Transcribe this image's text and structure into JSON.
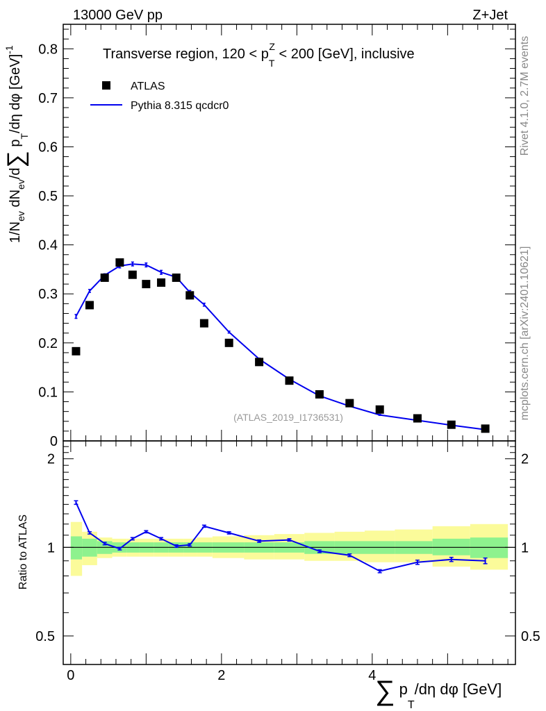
{
  "header": {
    "left": "13000 GeV pp",
    "right": "Z+Jet"
  },
  "side_labels": {
    "top": "Rivet 4.1.0,  2.7M events",
    "bottom": "mcplots.cern.ch [arXiv:2401.10621]"
  },
  "chart_data": [
    {
      "type": "scatter",
      "panel": "main",
      "title": "Transverse region, 120 < p_T^Z < 200 [GeV], inclusive",
      "analysis_label": "(ATLAS_2019_I1736531)",
      "ylabel": "1/N_ev dN_ev/d∑p_T/dη dφ [GeV]^-1",
      "xlim": [
        -0.1,
        5.9
      ],
      "ylim": [
        0,
        0.85
      ],
      "ytick_labels": [
        "0",
        "0.1",
        "0.2",
        "0.3",
        "0.4",
        "0.5",
        "0.6",
        "0.7",
        "0.8"
      ],
      "legend": {
        "placement": "top-left",
        "entries": [
          "ATLAS",
          "Pythia 8.315 qcdcr0"
        ]
      },
      "series": [
        {
          "name": "ATLAS",
          "style": "markers",
          "color": "#000000",
          "x": [
            0.07,
            0.25,
            0.45,
            0.65,
            0.82,
            1.0,
            1.2,
            1.4,
            1.58,
            1.77,
            2.1,
            2.5,
            2.9,
            3.3,
            3.7,
            4.1,
            4.6,
            5.05,
            5.5
          ],
          "y": [
            0.183,
            0.277,
            0.333,
            0.364,
            0.339,
            0.32,
            0.323,
            0.333,
            0.297,
            0.24,
            0.2,
            0.161,
            0.123,
            0.095,
            0.077,
            0.064,
            0.046,
            0.033,
            0.025
          ]
        },
        {
          "name": "Pythia 8.315 qcdcr0",
          "style": "line",
          "color": "#0000ee",
          "x": [
            0.07,
            0.25,
            0.45,
            0.65,
            0.82,
            1.0,
            1.2,
            1.4,
            1.58,
            1.77,
            2.1,
            2.5,
            2.9,
            3.3,
            3.7,
            4.1,
            4.6,
            5.05,
            5.5
          ],
          "y": [
            0.254,
            0.306,
            0.338,
            0.357,
            0.361,
            0.359,
            0.344,
            0.334,
            0.303,
            0.278,
            0.222,
            0.167,
            0.126,
            0.092,
            0.071,
            0.053,
            0.042,
            0.032,
            0.023
          ],
          "err": [
            0.004,
            0.003,
            0.003,
            0.004,
            0.004,
            0.004,
            0.004,
            0.004,
            0.004,
            0.003,
            0.002,
            0.002,
            0.002,
            0.001,
            0.001,
            0.001,
            0.001,
            0.001,
            0.001
          ]
        }
      ]
    },
    {
      "type": "line",
      "panel": "ratio",
      "ylabel": "Ratio to ATLAS",
      "xlabel": "∑p_T/dη dφ [GeV]",
      "xlim": [
        -0.1,
        5.9
      ],
      "ylim": [
        0.4,
        2.3
      ],
      "xtick_labels": [
        "0",
        "2",
        "4"
      ],
      "ytick_labels": [
        "0.5",
        "1",
        "2"
      ],
      "reference": 1.0,
      "bands": {
        "edges": [
          0.0,
          0.15,
          0.35,
          0.55,
          0.74,
          0.91,
          1.1,
          1.3,
          1.5,
          1.67,
          1.88,
          2.3,
          2.7,
          3.1,
          3.5,
          3.9,
          4.3,
          4.8,
          5.3,
          5.8
        ],
        "stat_lo": [
          0.91,
          0.93,
          0.95,
          0.96,
          0.96,
          0.96,
          0.96,
          0.96,
          0.96,
          0.96,
          0.96,
          0.96,
          0.96,
          0.95,
          0.95,
          0.95,
          0.95,
          0.94,
          0.92
        ],
        "stat_hi": [
          1.09,
          1.07,
          1.05,
          1.04,
          1.04,
          1.04,
          1.04,
          1.04,
          1.04,
          1.04,
          1.04,
          1.04,
          1.04,
          1.05,
          1.05,
          1.05,
          1.05,
          1.07,
          1.08
        ],
        "tot_lo": [
          0.8,
          0.87,
          0.92,
          0.93,
          0.93,
          0.93,
          0.93,
          0.93,
          0.93,
          0.93,
          0.92,
          0.91,
          0.91,
          0.9,
          0.9,
          0.89,
          0.89,
          0.86,
          0.84
        ],
        "tot_hi": [
          1.22,
          1.13,
          1.08,
          1.07,
          1.07,
          1.07,
          1.07,
          1.07,
          1.07,
          1.08,
          1.09,
          1.1,
          1.11,
          1.12,
          1.13,
          1.14,
          1.15,
          1.18,
          1.2
        ],
        "stat_color": "#8ef28e",
        "tot_color": "#fbfb9a"
      },
      "series": [
        {
          "name": "Pythia 8.315 qcdcr0 / ATLAS",
          "color": "#0000ee",
          "x": [
            0.07,
            0.25,
            0.45,
            0.65,
            0.82,
            1.0,
            1.2,
            1.4,
            1.58,
            1.77,
            2.1,
            2.5,
            2.9,
            3.3,
            3.7,
            4.1,
            4.6,
            5.05,
            5.5
          ],
          "y": [
            1.42,
            1.12,
            1.03,
            0.99,
            1.07,
            1.13,
            1.07,
            1.01,
            1.02,
            1.18,
            1.12,
            1.05,
            1.06,
            0.97,
            0.94,
            0.83,
            0.89,
            0.91,
            0.9
          ],
          "err": [
            0.02,
            0.01,
            0.01,
            0.01,
            0.01,
            0.01,
            0.01,
            0.01,
            0.01,
            0.01,
            0.01,
            0.01,
            0.01,
            0.01,
            0.01,
            0.01,
            0.015,
            0.015,
            0.02
          ]
        }
      ]
    }
  ]
}
